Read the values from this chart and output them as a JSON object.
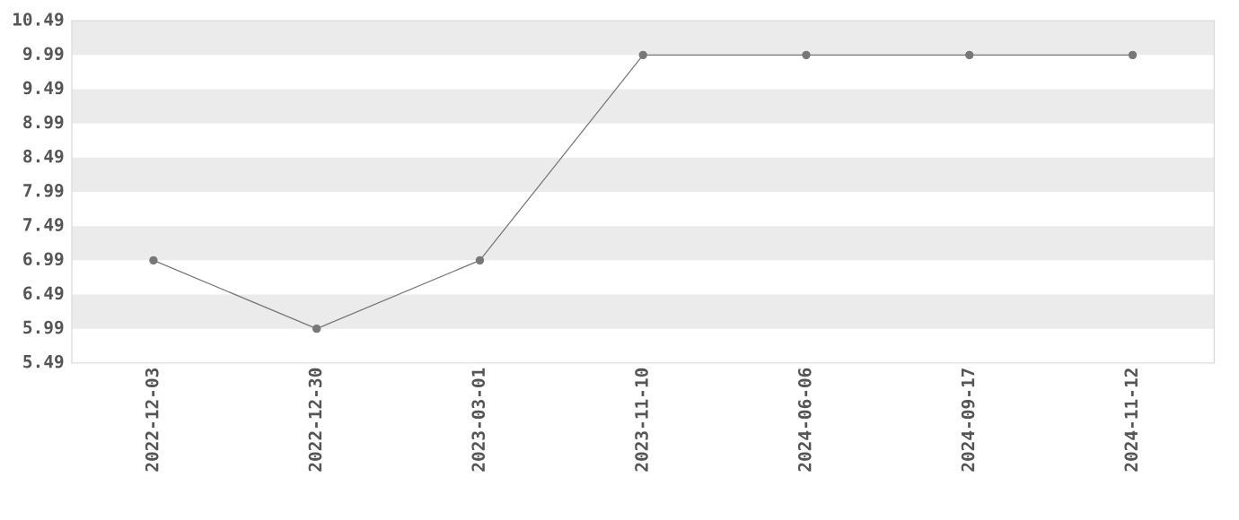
{
  "chart_data": {
    "type": "line",
    "categories": [
      "2022-12-03",
      "2022-12-30",
      "2023-03-01",
      "2023-11-10",
      "2024-06-06",
      "2024-09-17",
      "2024-11-12"
    ],
    "series": [
      {
        "color": "#777777",
        "values": [
          6.99,
          5.99,
          6.99,
          9.99,
          9.99,
          9.99,
          9.99
        ]
      }
    ],
    "ylim": [
      5.49,
      10.49
    ],
    "yticks": [
      5.49,
      5.99,
      6.49,
      6.99,
      7.49,
      7.99,
      8.49,
      8.99,
      9.49,
      9.99,
      10.49
    ],
    "bands": [
      {
        "axis": "y",
        "from": 5.99,
        "to": 6.49,
        "color": "#ebebeb"
      },
      {
        "axis": "y",
        "from": 6.99,
        "to": 7.49,
        "color": "#ebebeb"
      },
      {
        "axis": "y",
        "from": 7.99,
        "to": 8.49,
        "color": "#ebebeb"
      },
      {
        "axis": "y",
        "from": 8.99,
        "to": 9.49,
        "color": "#ebebeb"
      },
      {
        "axis": "y",
        "from": 9.99,
        "to": 10.49,
        "color": "#ebebeb"
      }
    ],
    "marker": "circle",
    "line_style": "solid",
    "grid": false
  }
}
